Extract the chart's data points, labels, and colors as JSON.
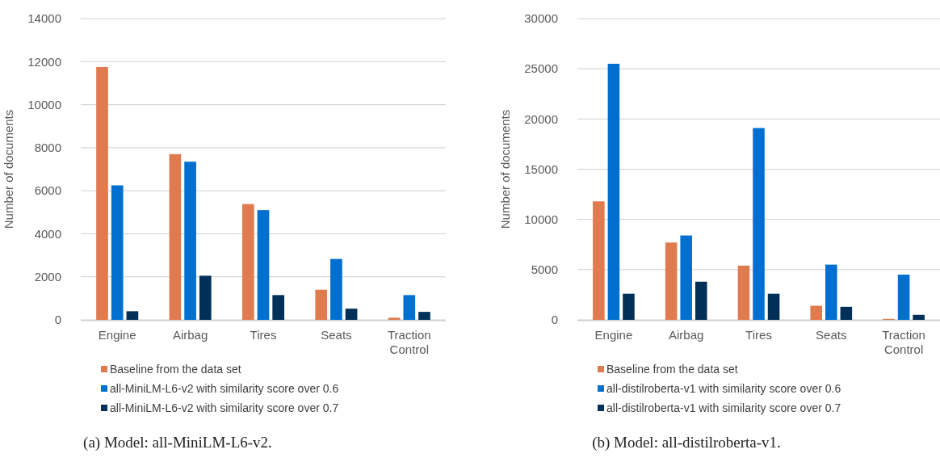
{
  "chart_data": [
    {
      "type": "bar",
      "title": "(a) Model: all-MiniLM-L6-v2.",
      "ylabel": "Number of documents",
      "categories": [
        "Engine",
        "Airbag",
        "Tires",
        "Seats",
        "Traction Control"
      ],
      "series": [
        {
          "name": "Baseline from the data set",
          "color": "#e07b4f",
          "values": [
            11750,
            7700,
            5380,
            1400,
            100
          ]
        },
        {
          "name": "all-MiniLM-L6-v2 with similarity score over 0.6",
          "color": "#0070d0",
          "values": [
            6250,
            7350,
            5100,
            2830,
            1150
          ]
        },
        {
          "name": "all-MiniLM-L6-v2 with similarity score over 0.7",
          "color": "#003057",
          "values": [
            400,
            2050,
            1150,
            520,
            370
          ]
        }
      ],
      "ylim": [
        0,
        14000
      ],
      "yticks": [
        0,
        2000,
        4000,
        6000,
        8000,
        10000,
        12000,
        14000
      ],
      "grid": "y",
      "legend": "bottom"
    },
    {
      "type": "bar",
      "title": "(b) Model: all-distilroberta-v1.",
      "ylabel": "Number of documents",
      "categories": [
        "Engine",
        "Airbag",
        "Tires",
        "Seats",
        "Traction Control"
      ],
      "series": [
        {
          "name": "Baseline from the data set",
          "color": "#e07b4f",
          "values": [
            11800,
            7700,
            5400,
            1400,
            100
          ]
        },
        {
          "name": "all-distilroberta-v1 with similarity score over 0.6",
          "color": "#0070d0",
          "values": [
            25500,
            8400,
            19100,
            5500,
            4500
          ]
        },
        {
          "name": "all-distilroberta-v1 with similarity score over 0.7",
          "color": "#003057",
          "values": [
            2600,
            3800,
            2600,
            1300,
            500
          ]
        }
      ],
      "ylim": [
        0,
        30000
      ],
      "yticks": [
        0,
        5000,
        10000,
        15000,
        20000,
        25000,
        30000
      ],
      "grid": "y",
      "legend": "bottom"
    }
  ]
}
